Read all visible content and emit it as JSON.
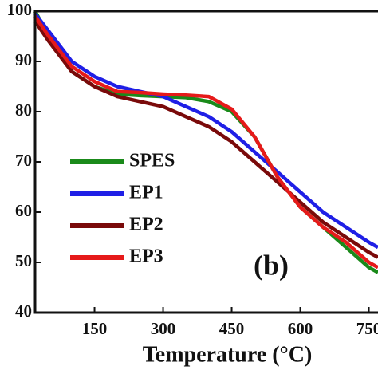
{
  "chart_data": {
    "type": "line",
    "x_label": "Temperature (°C)",
    "annotation": "(b)",
    "x": [
      20,
      50,
      100,
      150,
      200,
      250,
      300,
      350,
      400,
      450,
      500,
      550,
      600,
      650,
      700,
      750,
      770
    ],
    "series": [
      {
        "name": "SPES",
        "color": "#1a8a1a",
        "values": [
          100,
          95,
          88,
          85,
          83.5,
          83.2,
          83,
          82.8,
          82,
          80,
          75,
          67,
          61,
          57,
          53,
          49,
          48
        ]
      },
      {
        "name": "EP1",
        "color": "#1f1fe6",
        "values": [
          99.5,
          96,
          90,
          87,
          85,
          84,
          83,
          81,
          79,
          76,
          72,
          68,
          64,
          60,
          57,
          54,
          53
        ]
      },
      {
        "name": "EP2",
        "color": "#7a0a0a",
        "values": [
          98,
          94,
          88,
          85,
          83,
          82,
          81,
          79,
          77,
          74,
          70,
          66,
          62,
          58,
          55,
          52,
          51
        ]
      },
      {
        "name": "EP3",
        "color": "#e61a1a",
        "values": [
          99,
          95,
          89,
          86,
          84,
          83.8,
          83.5,
          83.3,
          83,
          80.5,
          75,
          67,
          61,
          57,
          54,
          50,
          49
        ]
      }
    ],
    "xlim": [
      20,
      770
    ],
    "xticks": [
      150,
      300,
      450,
      600,
      750
    ],
    "ylim": [
      40,
      100
    ],
    "yticks": [
      40,
      50,
      60,
      70,
      80,
      90,
      100
    ]
  }
}
